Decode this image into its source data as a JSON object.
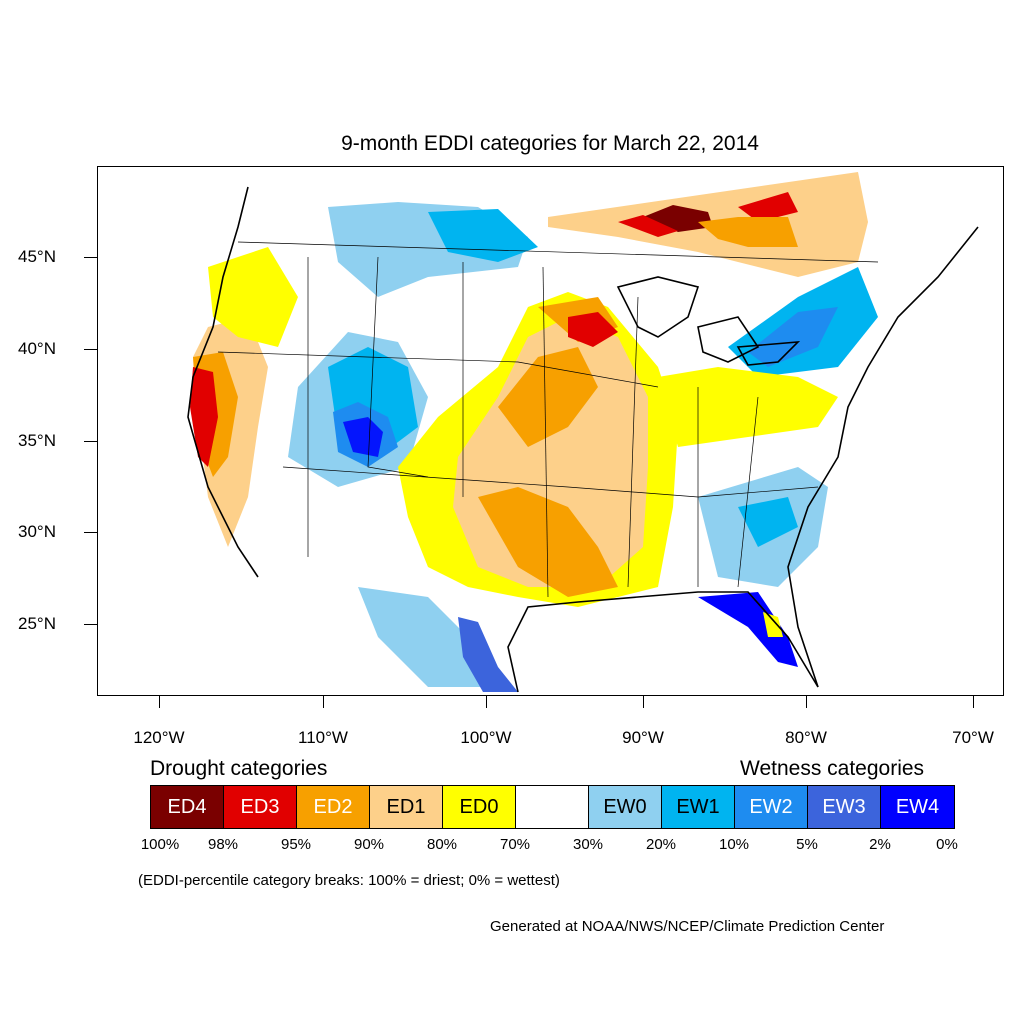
{
  "map": {
    "title": "9-month EDDI categories for March 22, 2014",
    "lat_labels": [
      "45°N",
      "40°N",
      "35°N",
      "30°N",
      "25°N"
    ],
    "lon_labels": [
      "120°W",
      "110°W",
      "100°W",
      "90°W",
      "80°W",
      "70°W"
    ],
    "colors": {
      "ED4": "#7a0000",
      "ED3": "#e10000",
      "ED2": "#f7a000",
      "ED1": "#fdd08a",
      "ED0": "#ffff00",
      "neutral": "#ffffff",
      "EW0": "#8fd0f0",
      "EW1": "#00b4f0",
      "EW2": "#1e8cf0",
      "EW3": "#3c64dc",
      "EW4": "#0000ff"
    }
  },
  "legend": {
    "drought_heading": "Drought categories",
    "wetness_heading": "Wetness categories",
    "categories": [
      {
        "label": "ED4",
        "color": "#7a0000",
        "text_color": "#ffffff"
      },
      {
        "label": "ED3",
        "color": "#e10000",
        "text_color": "#ffffff"
      },
      {
        "label": "ED2",
        "color": "#f7a000",
        "text_color": "#ffffff"
      },
      {
        "label": "ED1",
        "color": "#fdd08a",
        "text_color": "#000000"
      },
      {
        "label": "ED0",
        "color": "#ffff00",
        "text_color": "#000000"
      },
      {
        "label": "",
        "color": "#ffffff",
        "text_color": "#000000"
      },
      {
        "label": "EW0",
        "color": "#8fd0f0",
        "text_color": "#000000"
      },
      {
        "label": "EW1",
        "color": "#00b4f0",
        "text_color": "#000000"
      },
      {
        "label": "EW2",
        "color": "#1e8cf0",
        "text_color": "#ffffff"
      },
      {
        "label": "EW3",
        "color": "#3c64dc",
        "text_color": "#ffffff"
      },
      {
        "label": "EW4",
        "color": "#0000ff",
        "text_color": "#ffffff"
      }
    ],
    "percentiles": [
      "100%",
      "98%",
      "95%",
      "90%",
      "80%",
      "70%",
      "30%",
      "20%",
      "10%",
      "5%",
      "2%",
      "0%"
    ],
    "note": "(EDDI-percentile category breaks: 100% = driest; 0% = wettest)"
  },
  "credit": "Generated at NOAA/NWS/NCEP/Climate Prediction Center"
}
